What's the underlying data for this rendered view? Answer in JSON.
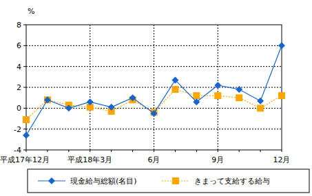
{
  "chart_data": {
    "type": "line",
    "y_label": "%",
    "categories": [
      "平成17年12月",
      null,
      null,
      "平成18年3月",
      null,
      null,
      "6月",
      null,
      null,
      "9月",
      null,
      null,
      "12月"
    ],
    "series": [
      {
        "name": "現金給与総額(名目)",
        "color": "#1464d2",
        "marker": "diamond",
        "line_style": "solid",
        "values": [
          -2.6,
          0.8,
          0.0,
          0.6,
          0.1,
          1.0,
          -0.5,
          2.7,
          0.6,
          2.2,
          1.8,
          0.7,
          6.0
        ]
      },
      {
        "name": "きまって支給する給与",
        "color": "#ffa500",
        "marker": "square",
        "line_style": "dotted",
        "values": [
          -1.1,
          0.8,
          0.3,
          0.1,
          -0.3,
          0.8,
          -0.4,
          1.8,
          1.2,
          1.2,
          1.0,
          0.0,
          1.2
        ]
      }
    ],
    "ylim": [
      -4,
      8
    ],
    "yticks": [
      -4,
      -2,
      0,
      2,
      4,
      6,
      8
    ],
    "grid": true,
    "legend": "bottom"
  }
}
